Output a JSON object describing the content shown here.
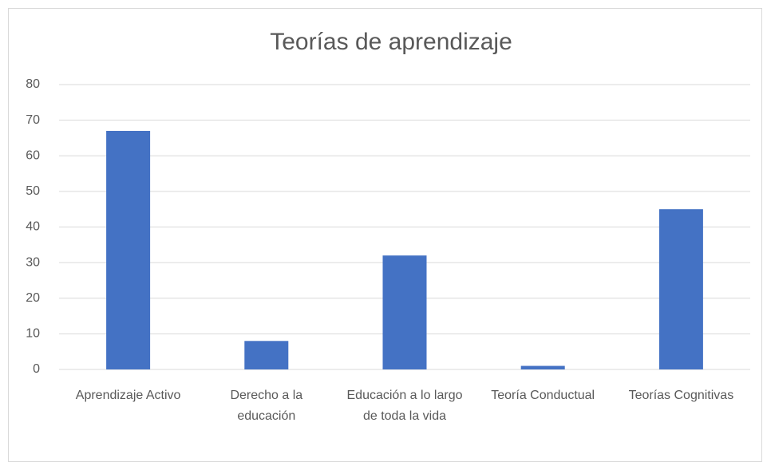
{
  "chart_data": {
    "type": "bar",
    "title": "Teorías de aprendizaje",
    "categories": [
      "Aprendizaje Activo",
      "Derecho a la educación",
      "Educación a lo largo de toda la vida",
      "Teoría Conductual",
      "Teorías Cognitivas"
    ],
    "values": [
      67,
      8,
      32,
      1,
      45
    ],
    "color": "#4472c4",
    "ylim": [
      0,
      80
    ],
    "yticks": [
      0,
      10,
      20,
      30,
      40,
      50,
      60,
      70,
      80
    ],
    "grid": true
  }
}
